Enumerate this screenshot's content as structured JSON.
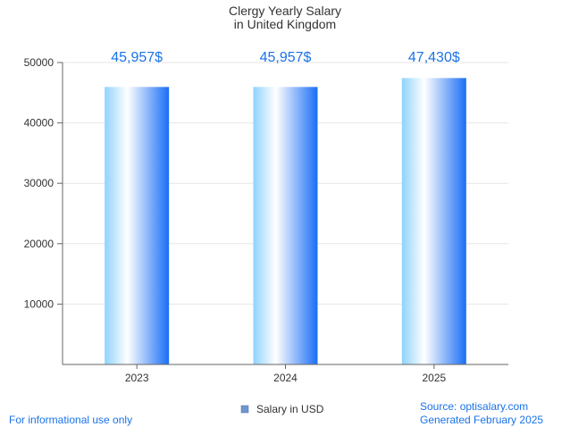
{
  "chart_data": {
    "type": "bar",
    "title": "Clergy Yearly Salary",
    "subtitle": "in United Kingdom",
    "categories": [
      "2023",
      "2024",
      "2025"
    ],
    "series": [
      {
        "name": "Salary in USD",
        "values": [
          45957,
          45957,
          47430
        ]
      }
    ],
    "data_labels": [
      "45,957$",
      "45,957$",
      "47,430$"
    ],
    "y_ticks": [
      10000,
      20000,
      30000,
      40000,
      50000
    ],
    "ylim": [
      0,
      50000
    ],
    "grid": true,
    "legend_position": "bottom-center",
    "colors": {
      "bar_light": "#ffffff",
      "bar_mid": "#8fd3fe",
      "bar_dark": "#1a6ef5",
      "label": "#1a73e8",
      "legend_swatch": "#6f97cf"
    }
  },
  "footer": {
    "left": "For informational use only",
    "source": "Source: optisalary.com",
    "generated": "Generated February 2025"
  }
}
